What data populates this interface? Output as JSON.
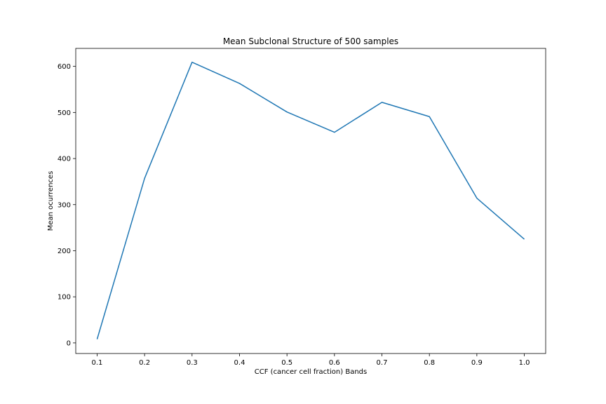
{
  "chart_data": {
    "type": "line",
    "title": "Mean Subclonal Structure of 500 samples",
    "xlabel": "CCF (cancer cell fraction) Bands",
    "ylabel": "Mean ocurrences",
    "x": [
      "0.1",
      "0.2",
      "0.3",
      "0.4",
      "0.5",
      "0.6",
      "0.7",
      "0.8",
      "0.9",
      "1.0"
    ],
    "series": [
      {
        "values": [
          8,
          357,
          609,
          563,
          501,
          457,
          522,
          491,
          314,
          225
        ],
        "color": "#1f77b4"
      }
    ],
    "ylim": [
      -23,
      639
    ],
    "yticks": [
      "0",
      "100",
      "200",
      "300",
      "400",
      "500",
      "600"
    ],
    "grid": false,
    "legend": "none"
  }
}
